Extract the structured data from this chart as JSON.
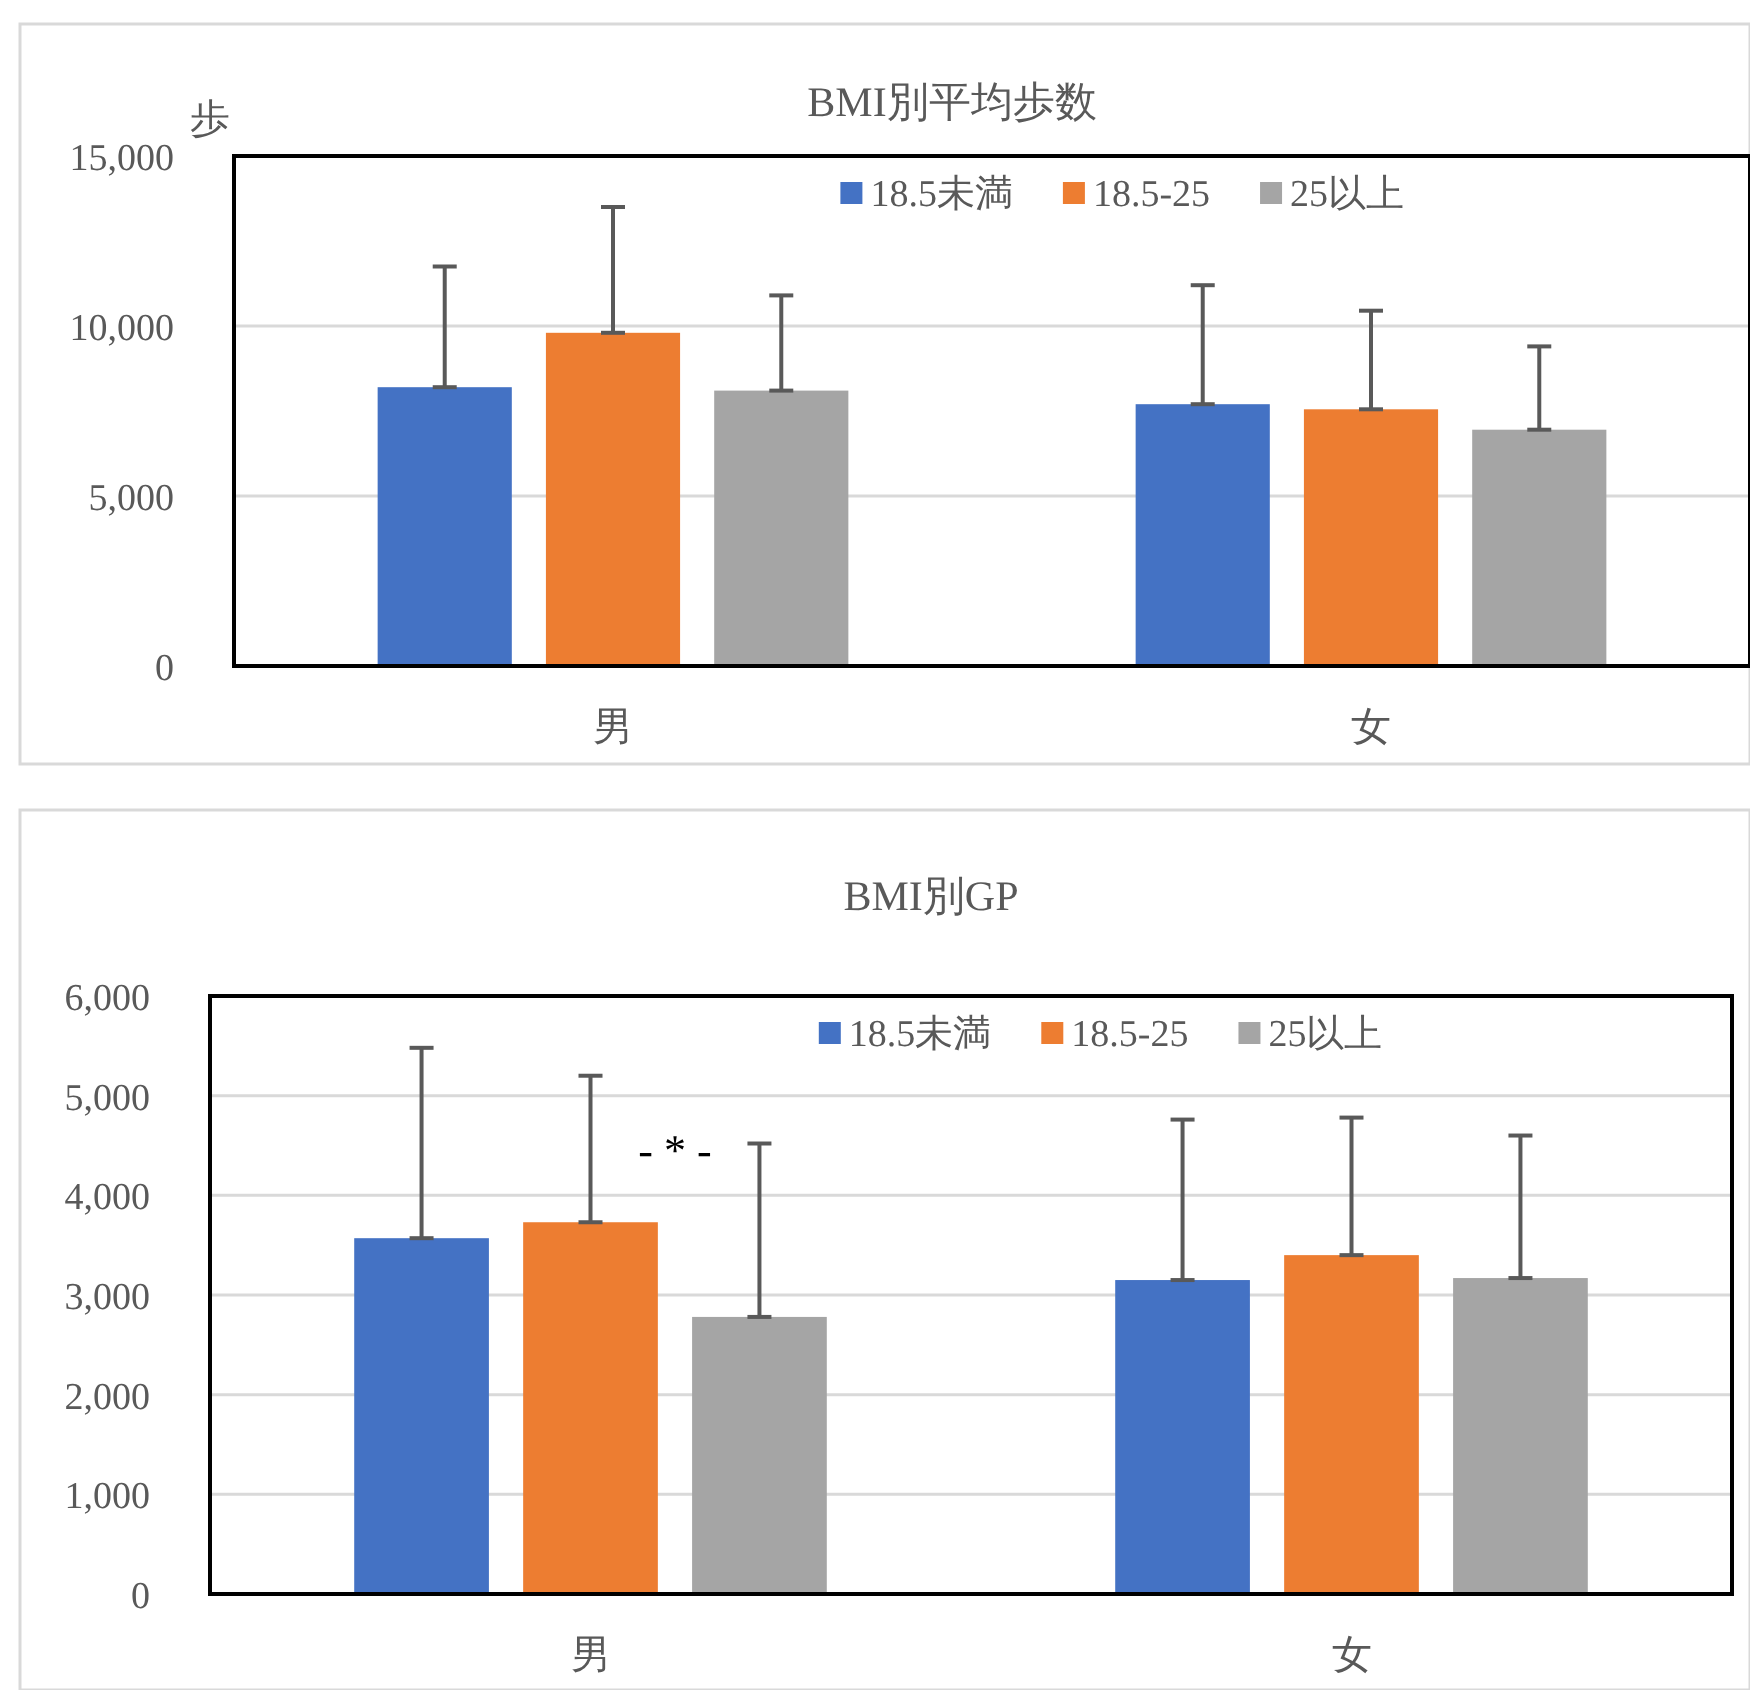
{
  "chart_data": [
    {
      "type": "bar",
      "title": "BMI別平均歩数",
      "ylabel": "歩",
      "categories": [
        "男",
        "女"
      ],
      "series": [
        {
          "name": "18.5未満",
          "color": "#4472c4",
          "values": [
            8200,
            7700
          ],
          "errors": [
            [
              8200,
              11750
            ],
            [
              7700,
              11200
            ]
          ]
        },
        {
          "name": "18.5-25",
          "color": "#ed7d31",
          "values": [
            9800,
            7550
          ],
          "errors": [
            [
              9800,
              13500
            ],
            [
              7550,
              10450
            ]
          ]
        },
        {
          "name": "25以上",
          "color": "#a5a5a5",
          "values": [
            8100,
            6950
          ],
          "errors": [
            [
              8100,
              10900
            ],
            [
              6950,
              9400
            ]
          ]
        }
      ],
      "ylim": [
        0,
        15000
      ],
      "yticks": [
        {
          "value": 0,
          "label": "0"
        },
        {
          "value": 5000,
          "label": "5,000"
        },
        {
          "value": 10000,
          "label": "10,000"
        },
        {
          "value": 15000,
          "label": "15,000"
        }
      ],
      "grid": "y",
      "legend": "top right"
    },
    {
      "type": "bar",
      "title": "BMI別GP",
      "categories": [
        "男",
        "女"
      ],
      "series": [
        {
          "name": "18.5未満",
          "color": "#4472c4",
          "values": [
            3570,
            3150
          ],
          "errors": [
            [
              3570,
              5480
            ],
            [
              3150,
              4760
            ]
          ]
        },
        {
          "name": "18.5-25",
          "color": "#ed7d31",
          "values": [
            3730,
            3400
          ],
          "errors": [
            [
              3730,
              5200
            ],
            [
              3400,
              4780
            ]
          ]
        },
        {
          "name": "25以上",
          "color": "#a5a5a5",
          "values": [
            2780,
            3170
          ],
          "errors": [
            [
              2780,
              4520
            ],
            [
              3170,
              4600
            ]
          ]
        }
      ],
      "ylim": [
        0,
        6000
      ],
      "yticks": [
        {
          "value": 0,
          "label": "0"
        },
        {
          "value": 1000,
          "label": "1,000"
        },
        {
          "value": 2000,
          "label": "2,000"
        },
        {
          "value": 3000,
          "label": "3,000"
        },
        {
          "value": 4000,
          "label": "4,000"
        },
        {
          "value": 5000,
          "label": "5,000"
        },
        {
          "value": 6000,
          "label": "6,000"
        }
      ],
      "annotations": [
        {
          "text": "- * -",
          "x": "男",
          "y": 4300
        }
      ],
      "grid": "y",
      "legend": "top right"
    }
  ]
}
